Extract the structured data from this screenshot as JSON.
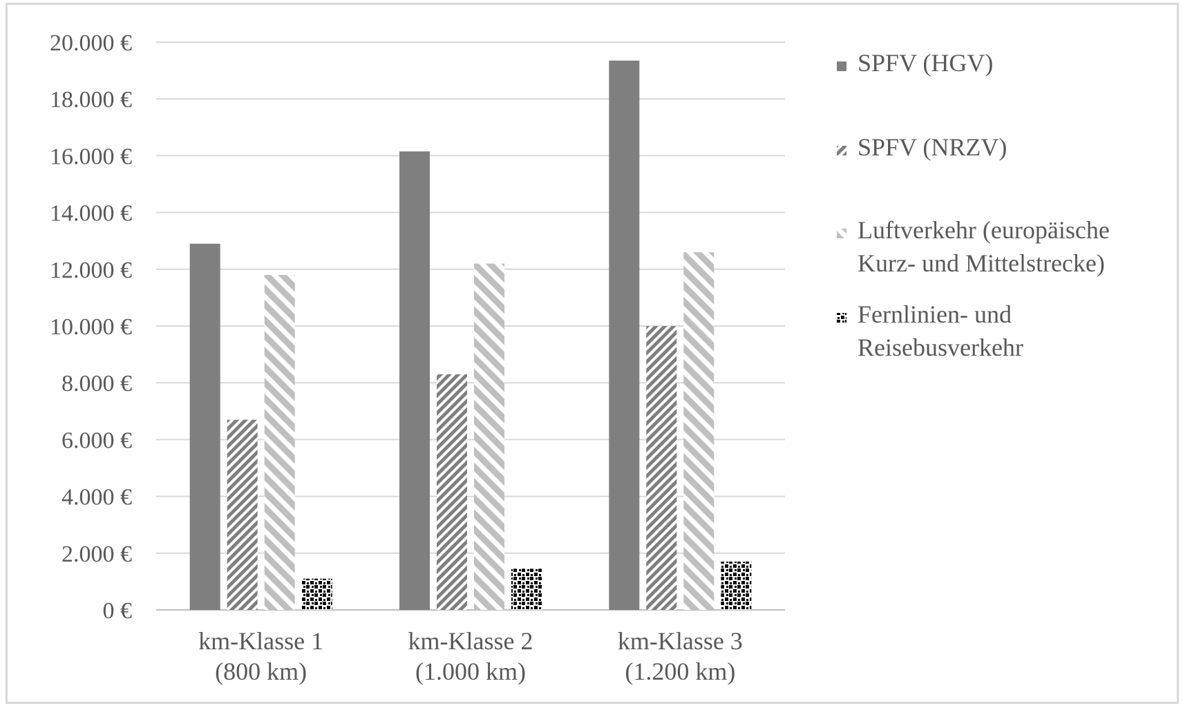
{
  "chart_data": {
    "type": "bar",
    "categories": [
      [
        "km-Klasse 1",
        "(800 km)"
      ],
      [
        "km-Klasse 2",
        "(1.000 km)"
      ],
      [
        "km-Klasse 3",
        "(1.200 km)"
      ]
    ],
    "series": [
      {
        "name": "SPFV (HGV)",
        "values": [
          12900,
          16150,
          19350
        ],
        "color": "#7f7f7f",
        "pattern": "solid"
      },
      {
        "name": "SPFV (NRZV)",
        "values": [
          6700,
          8300,
          10000
        ],
        "color": "#7f7f7f",
        "pattern": "dense-diagonal"
      },
      {
        "name": "Luftverkehr (europäische Kurz- und Mittelstrecke)",
        "name_lines": [
          "Luftverkehr (europäische",
          "Kurz- und Mittelstrecke)"
        ],
        "values": [
          11800,
          12200,
          12600
        ],
        "color": "#bfbfbf",
        "pattern": "wide-diagonal"
      },
      {
        "name": "Fernlinien- und Reisebusverkehr",
        "name_lines": [
          "Fernlinien- und",
          "Reisebusverkehr"
        ],
        "values": [
          1100,
          1450,
          1700
        ],
        "color": "#000000",
        "pattern": "checker"
      }
    ],
    "y_ticks": [
      "0 €",
      "2.000 €",
      "4.000 €",
      "6.000 €",
      "8.000 €",
      "10.000 €",
      "12.000 €",
      "14.000 €",
      "16.000 €",
      "18.000 €",
      "20.000 €"
    ],
    "ylim": [
      0,
      20000
    ],
    "grid": true,
    "legend_position": "right"
  }
}
